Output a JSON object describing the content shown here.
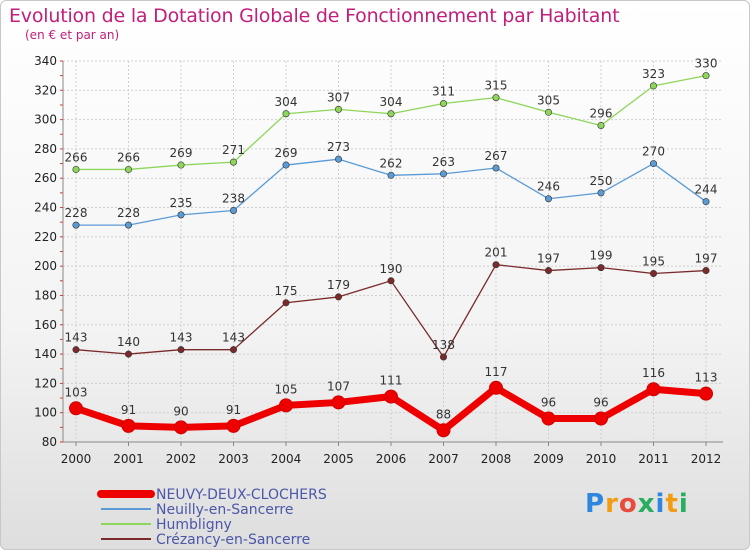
{
  "chart_data": {
    "type": "line",
    "title": "Evolution de la Dotation Globale de Fonctionnement par Habitant",
    "subtitle": "(en € et par an)",
    "x": [
      "2000",
      "2001",
      "2002",
      "2003",
      "2004",
      "2005",
      "2006",
      "2007",
      "2008",
      "2009",
      "2010",
      "2011",
      "2012"
    ],
    "yticks": [
      80,
      100,
      120,
      140,
      160,
      180,
      200,
      220,
      240,
      260,
      280,
      300,
      320,
      340
    ],
    "ylim": [
      80,
      340
    ],
    "grid": true,
    "legend_position": "bottom-left",
    "series": [
      {
        "name": "NEUVY-DEUX-CLOCHERS",
        "color": "#ee0000",
        "values": [
          103,
          91,
          90,
          91,
          105,
          107,
          111,
          88,
          117,
          96,
          96,
          116,
          113
        ]
      },
      {
        "name": "Neuilly-en-Sancerre",
        "color": "#5b9bd5",
        "values": [
          228,
          228,
          235,
          238,
          269,
          273,
          262,
          263,
          267,
          246,
          250,
          270,
          244
        ]
      },
      {
        "name": "Humbligny",
        "color": "#8ed65a",
        "values": [
          266,
          266,
          269,
          271,
          304,
          307,
          304,
          311,
          315,
          305,
          296,
          323,
          330
        ]
      },
      {
        "name": "Crézancy-en-Sancerre",
        "color": "#7a2a2a",
        "values": [
          143,
          140,
          143,
          143,
          175,
          179,
          190,
          138,
          201,
          197,
          199,
          195,
          197
        ]
      }
    ]
  },
  "logo": {
    "text": "Proxiti",
    "letters": [
      "P",
      "r",
      "o",
      "x",
      "i",
      "t",
      "i"
    ],
    "colors": [
      "#2e86de",
      "#f39c12",
      "#e74c3c",
      "#27ae60",
      "#2e86de",
      "#f39c12",
      "#27ae60"
    ]
  }
}
